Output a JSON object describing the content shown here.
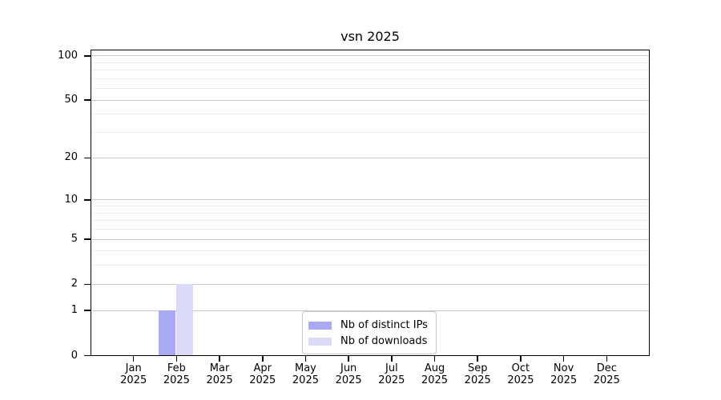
{
  "chart_data": {
    "type": "bar",
    "title": "vsn 2025",
    "xlabel": "",
    "ylabel": "",
    "grid": "on",
    "categories": [
      {
        "month": "Jan",
        "year": "2025"
      },
      {
        "month": "Feb",
        "year": "2025"
      },
      {
        "month": "Mar",
        "year": "2025"
      },
      {
        "month": "Apr",
        "year": "2025"
      },
      {
        "month": "May",
        "year": "2025"
      },
      {
        "month": "Jun",
        "year": "2025"
      },
      {
        "month": "Jul",
        "year": "2025"
      },
      {
        "month": "Aug",
        "year": "2025"
      },
      {
        "month": "Sep",
        "year": "2025"
      },
      {
        "month": "Oct",
        "year": "2025"
      },
      {
        "month": "Nov",
        "year": "2025"
      },
      {
        "month": "Dec",
        "year": "2025"
      }
    ],
    "series": [
      {
        "name": "Nb of distinct IPs",
        "color": "#a9a9f4",
        "values": [
          0,
          1,
          0,
          0,
          0,
          0,
          0,
          0,
          0,
          0,
          0,
          0
        ]
      },
      {
        "name": "Nb of downloads",
        "color": "#dbdbf8",
        "values": [
          0,
          2,
          0,
          0,
          0,
          0,
          0,
          0,
          0,
          0,
          0,
          0
        ]
      }
    ],
    "y_axis": {
      "scale": "log1p",
      "major_ticks": [
        0,
        1,
        2,
        5,
        10,
        20,
        50,
        100
      ],
      "minor_ticks": [
        3,
        4,
        6,
        7,
        8,
        9,
        30,
        40,
        60,
        70,
        80,
        90
      ],
      "ylim": [
        0,
        112
      ]
    },
    "legend": {
      "position": "lower center",
      "entries": [
        "Nb of distinct IPs",
        "Nb of downloads"
      ]
    },
    "style_colors": {
      "grid_major": "#c9c9c9",
      "grid_minor": "#ececec",
      "spine": "#000000",
      "background": "#ffffff"
    }
  }
}
